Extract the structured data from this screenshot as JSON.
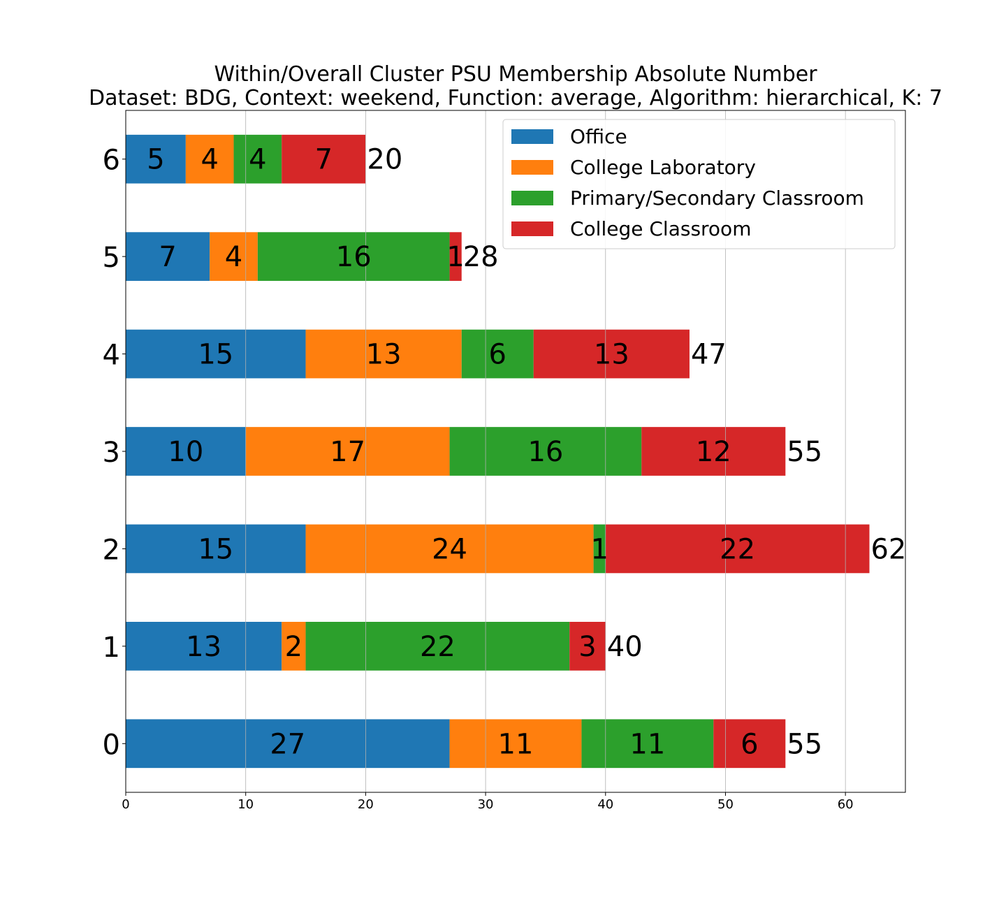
{
  "chart_data": {
    "type": "bar",
    "orientation": "horizontal",
    "stacked": true,
    "title": "Within/Overall Cluster PSU Membership Absolute Number",
    "subtitle": "Dataset: BDG, Context: weekend, Function: average, Algorithm: hierarchical, K: 7",
    "xlabel": "",
    "ylabel": "",
    "xlim": [
      0,
      65
    ],
    "xticks": [
      "0",
      "10",
      "20",
      "30",
      "40",
      "50",
      "60"
    ],
    "grid": "vertical",
    "legend_position": "top-right",
    "categories": [
      "0",
      "1",
      "2",
      "3",
      "4",
      "5",
      "6"
    ],
    "series": [
      {
        "name": "Office",
        "color": "#1f77b4",
        "values": [
          27,
          13,
          15,
          10,
          15,
          7,
          5
        ]
      },
      {
        "name": "College Laboratory",
        "color": "#ff7f0e",
        "values": [
          11,
          2,
          24,
          17,
          13,
          4,
          4
        ]
      },
      {
        "name": "Primary/Secondary Classroom",
        "color": "#2ca02c",
        "values": [
          11,
          22,
          1,
          16,
          6,
          16,
          4
        ]
      },
      {
        "name": "College Classroom",
        "color": "#d62728",
        "values": [
          6,
          3,
          22,
          12,
          13,
          1,
          7
        ]
      }
    ],
    "totals": [
      55,
      40,
      62,
      55,
      47,
      28,
      20
    ]
  }
}
